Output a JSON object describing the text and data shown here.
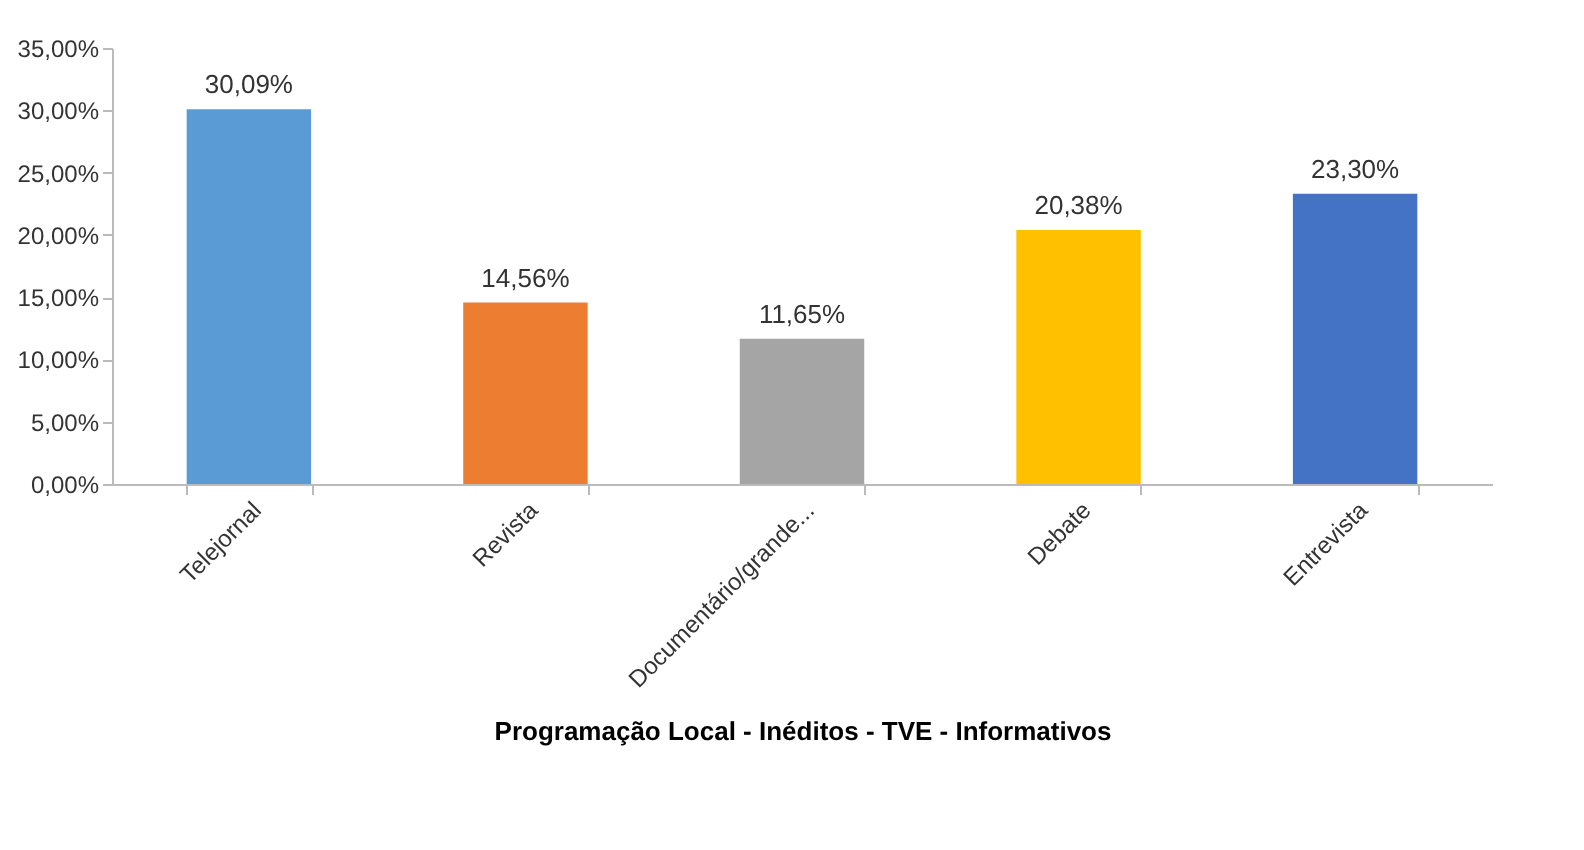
{
  "chart_data": {
    "type": "bar",
    "xlabel": "Programação Local - Inéditos - TVE - Informativos",
    "categories": [
      "Telejornal",
      "Revista",
      "Documentário/grande...",
      "Debate",
      "Entrevista"
    ],
    "values": [
      30.09,
      14.56,
      11.65,
      20.38,
      23.3
    ],
    "colors": [
      "#5b9bd5",
      "#ed7d31",
      "#a5a5a5",
      "#ffc000",
      "#4472c4"
    ],
    "value_labels": [
      "30,09%",
      "14,56%",
      "11,65%",
      "20,38%",
      "23,30%"
    ],
    "ylim": [
      0,
      35
    ],
    "yticks": [
      {
        "value": 0,
        "label": "0,00%"
      },
      {
        "value": 5,
        "label": "5,00%"
      },
      {
        "value": 10,
        "label": "10,00%"
      },
      {
        "value": 15,
        "label": "15,00%"
      },
      {
        "value": 20,
        "label": "20,00%"
      },
      {
        "value": 25,
        "label": "25,00%"
      },
      {
        "value": 30,
        "label": "30,00%"
      },
      {
        "value": 35,
        "label": "35,00%"
      }
    ],
    "grid": false,
    "legend": false
  }
}
